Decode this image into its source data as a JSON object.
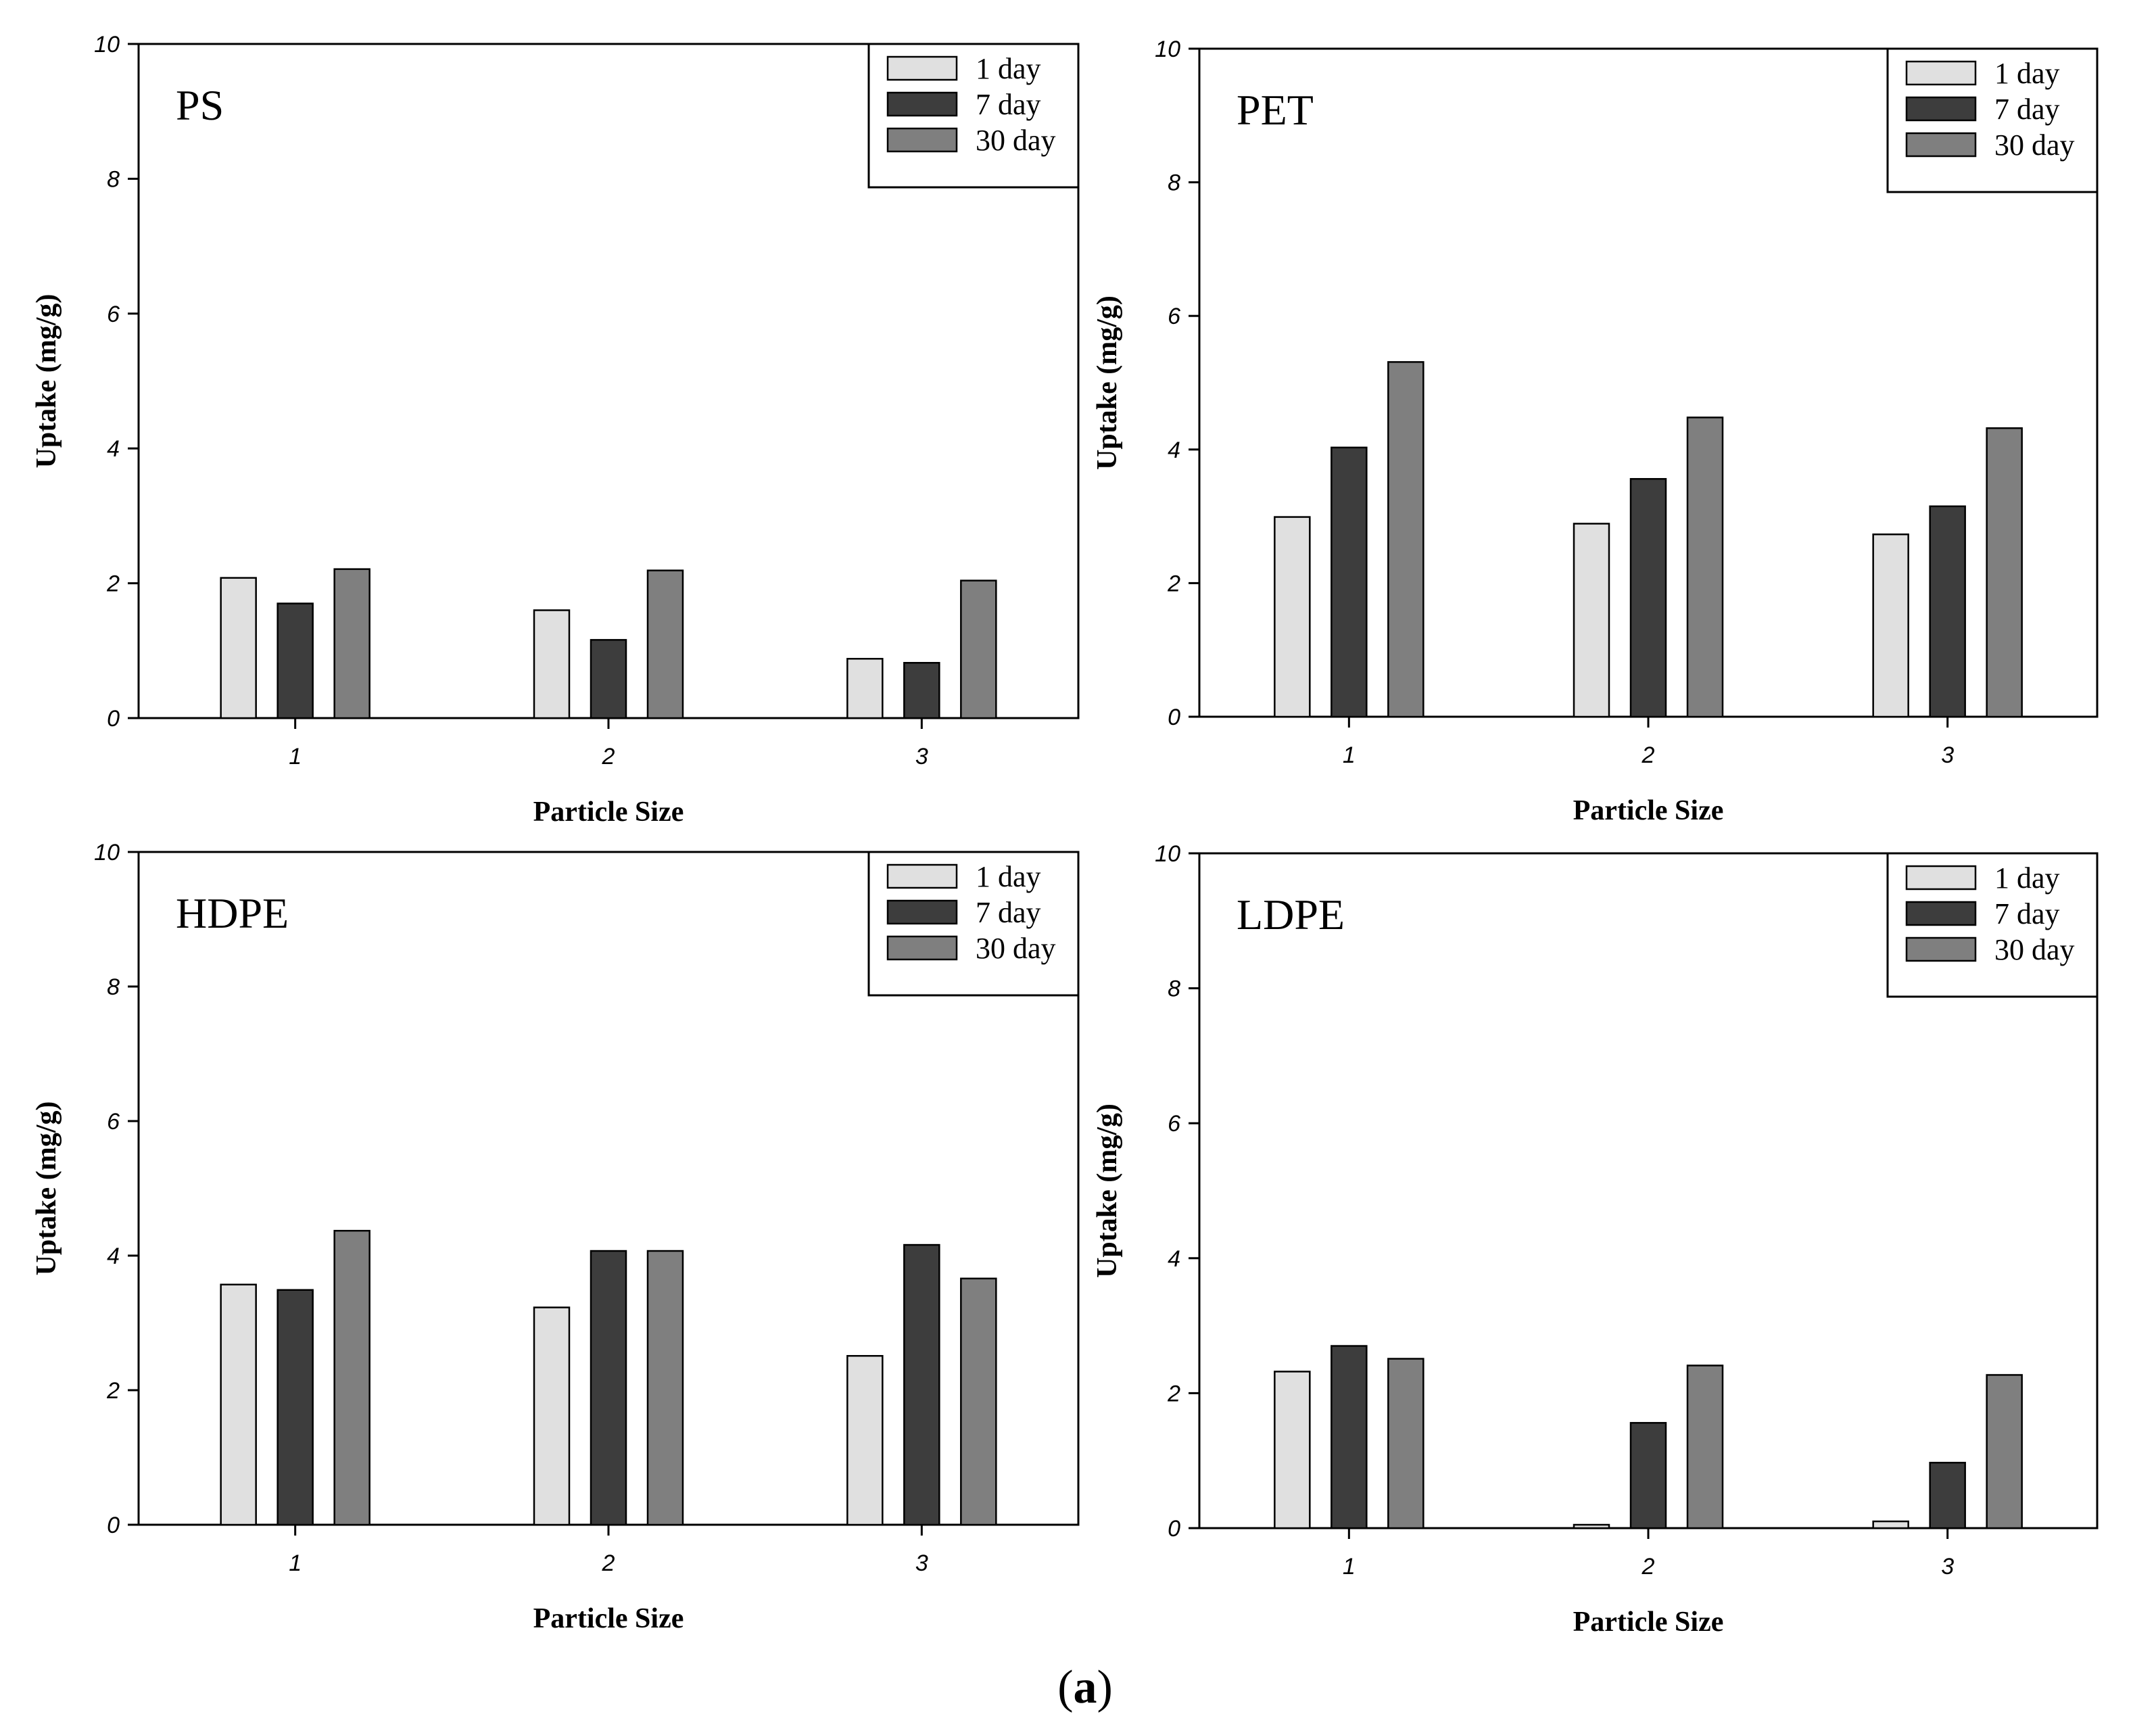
{
  "figure_caption": {
    "open": "(",
    "letter": "a",
    "close": ")"
  },
  "chart_data": [
    {
      "type": "bar",
      "title": "PS",
      "xlabel": "Particle Size",
      "ylabel": "Uptake (mg/g)",
      "categories": [
        "1",
        "2",
        "3"
      ],
      "ylim": [
        0,
        10
      ],
      "yticks": [
        "0",
        "2",
        "4",
        "6",
        "8",
        "10"
      ],
      "legend_position": "top-right",
      "series": [
        {
          "name": "1 day",
          "color": "#e0e0e0",
          "values": [
            2.08,
            1.6,
            0.88
          ]
        },
        {
          "name": "7 day",
          "color": "#3d3d3d",
          "values": [
            1.7,
            1.16,
            0.82
          ]
        },
        {
          "name": "30 day",
          "color": "#7f7f7f",
          "values": [
            2.21,
            2.19,
            2.04
          ]
        }
      ]
    },
    {
      "type": "bar",
      "title": "PET",
      "xlabel": "Particle Size",
      "ylabel": "Uptake (mg/g)",
      "categories": [
        "1",
        "2",
        "3"
      ],
      "ylim": [
        0,
        10
      ],
      "yticks": [
        "0",
        "2",
        "4",
        "6",
        "8",
        "10"
      ],
      "legend_position": "top-right",
      "series": [
        {
          "name": "1 day",
          "color": "#e0e0e0",
          "values": [
            2.99,
            2.89,
            2.73
          ]
        },
        {
          "name": "7 day",
          "color": "#3d3d3d",
          "values": [
            4.03,
            3.56,
            3.15
          ]
        },
        {
          "name": "30 day",
          "color": "#7f7f7f",
          "values": [
            5.31,
            4.48,
            4.32
          ]
        }
      ]
    },
    {
      "type": "bar",
      "title": "HDPE",
      "xlabel": "Particle Size",
      "ylabel": "Uptake (mg/g)",
      "categories": [
        "1",
        "2",
        "3"
      ],
      "ylim": [
        0,
        10
      ],
      "yticks": [
        "0",
        "2",
        "4",
        "6",
        "8",
        "10"
      ],
      "legend_position": "top-right",
      "series": [
        {
          "name": "1 day",
          "color": "#e0e0e0",
          "values": [
            3.57,
            3.23,
            2.51
          ]
        },
        {
          "name": "7 day",
          "color": "#3d3d3d",
          "values": [
            3.49,
            4.07,
            4.16
          ]
        },
        {
          "name": "30 day",
          "color": "#7f7f7f",
          "values": [
            4.37,
            4.07,
            3.66
          ]
        }
      ]
    },
    {
      "type": "bar",
      "title": "LDPE",
      "xlabel": "Particle Size",
      "ylabel": "Uptake (mg/g)",
      "categories": [
        "1",
        "2",
        "3"
      ],
      "ylim": [
        0,
        10
      ],
      "yticks": [
        "0",
        "2",
        "4",
        "6",
        "8",
        "10"
      ],
      "legend_position": "top-right",
      "series": [
        {
          "name": "1 day",
          "color": "#e0e0e0",
          "values": [
            2.32,
            0.05,
            0.1
          ]
        },
        {
          "name": "7 day",
          "color": "#3d3d3d",
          "values": [
            2.7,
            1.56,
            0.97
          ]
        },
        {
          "name": "30 day",
          "color": "#7f7f7f",
          "values": [
            2.51,
            2.41,
            2.27
          ]
        }
      ]
    }
  ]
}
